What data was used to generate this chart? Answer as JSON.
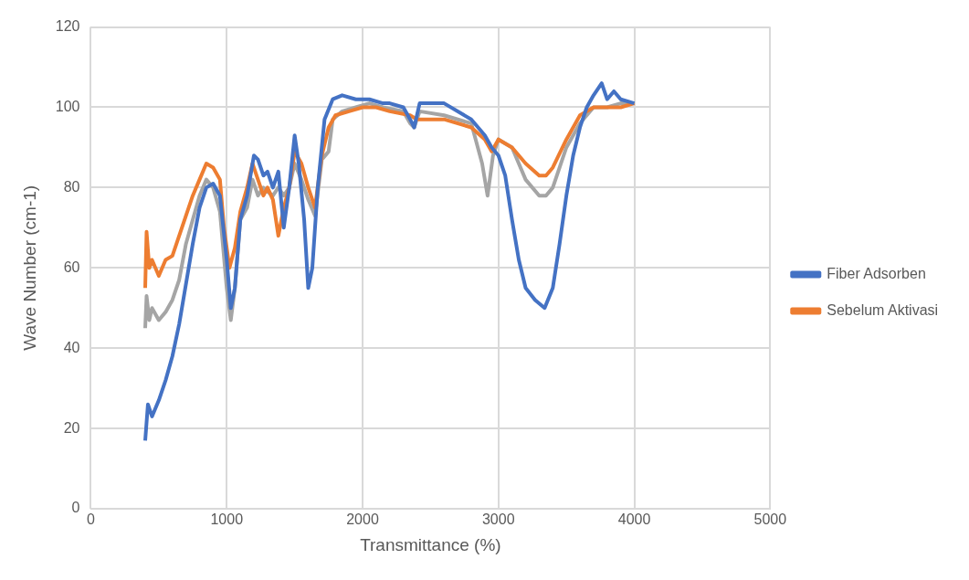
{
  "chart_data": {
    "type": "line",
    "xlabel": "Transmittance (%)",
    "ylabel": "Wave Number (cm-1)",
    "xlim": [
      0,
      5000
    ],
    "xticks": [
      0,
      1000,
      2000,
      3000,
      4000,
      5000
    ],
    "ylim": [
      0,
      120
    ],
    "yticks": [
      0,
      20,
      40,
      60,
      80,
      100,
      120
    ],
    "grid": true,
    "legend": "right",
    "marker": "none",
    "line_style": "solid",
    "series": [
      {
        "name": "Fiber Adsorben",
        "color": "#4472c4",
        "x": [
          400,
          420,
          450,
          500,
          550,
          600,
          650,
          700,
          750,
          800,
          850,
          900,
          950,
          1000,
          1030,
          1060,
          1100,
          1150,
          1200,
          1230,
          1270,
          1300,
          1340,
          1380,
          1420,
          1460,
          1500,
          1530,
          1570,
          1600,
          1630,
          1670,
          1720,
          1780,
          1850,
          1950,
          2050,
          2150,
          2200,
          2300,
          2350,
          2380,
          2420,
          2600,
          2800,
          2900,
          2950,
          3000,
          3050,
          3100,
          3150,
          3200,
          3270,
          3340,
          3400,
          3450,
          3500,
          3550,
          3600,
          3650,
          3700,
          3760,
          3800,
          3850,
          3900,
          4000
        ],
        "values": [
          17,
          26,
          23,
          27,
          32,
          38,
          46,
          56,
          66,
          75,
          80,
          81,
          78,
          62,
          50,
          55,
          72,
          78,
          88,
          87,
          83,
          84,
          80,
          84,
          70,
          80,
          93,
          86,
          72,
          55,
          60,
          80,
          97,
          102,
          103,
          102,
          102,
          101,
          101,
          100,
          97,
          95,
          101,
          101,
          97,
          93,
          90,
          88,
          83,
          72,
          62,
          55,
          52,
          50,
          55,
          66,
          78,
          88,
          95,
          100,
          103,
          106,
          102,
          104,
          102,
          101
        ]
      },
      {
        "name": "Sebelum Aktivasi",
        "color": "#ed7d31",
        "x": [
          400,
          410,
          430,
          450,
          500,
          550,
          600,
          650,
          700,
          750,
          800,
          850,
          900,
          950,
          980,
          1020,
          1060,
          1100,
          1150,
          1190,
          1230,
          1270,
          1300,
          1340,
          1380,
          1420,
          1460,
          1500,
          1550,
          1600,
          1650,
          1700,
          1750,
          1800,
          1900,
          2000,
          2100,
          2200,
          2350,
          2400,
          2600,
          2800,
          2900,
          2950,
          3000,
          3100,
          3200,
          3300,
          3350,
          3400,
          3500,
          3600,
          3700,
          3800,
          3900,
          4000
        ],
        "values": [
          55,
          69,
          60,
          62,
          58,
          62,
          63,
          68,
          73,
          78,
          82,
          86,
          85,
          82,
          70,
          60,
          65,
          74,
          80,
          86,
          82,
          78,
          80,
          77,
          68,
          75,
          80,
          89,
          86,
          80,
          75,
          88,
          95,
          98,
          99,
          100,
          100,
          99,
          98,
          97,
          97,
          95,
          92,
          89,
          92,
          90,
          86,
          83,
          83,
          85,
          92,
          98,
          100,
          100,
          100,
          101
        ]
      },
      {
        "color": "#a5a5a5",
        "x": [
          400,
          410,
          430,
          450,
          500,
          550,
          600,
          650,
          700,
          750,
          800,
          850,
          900,
          950,
          1000,
          1030,
          1060,
          1100,
          1150,
          1190,
          1230,
          1270,
          1300,
          1340,
          1380,
          1420,
          1460,
          1500,
          1550,
          1600,
          1650,
          1700,
          1750,
          1780,
          1850,
          1950,
          2050,
          2150,
          2300,
          2350,
          2380,
          2420,
          2600,
          2800,
          2880,
          2920,
          2960,
          3000,
          3100,
          3200,
          3300,
          3350,
          3400,
          3500,
          3600,
          3700,
          3800,
          3900,
          4000
        ],
        "values": [
          45,
          53,
          47,
          50,
          47,
          49,
          52,
          57,
          66,
          72,
          78,
          82,
          80,
          74,
          55,
          47,
          55,
          72,
          75,
          82,
          78,
          80,
          79,
          78,
          80,
          78,
          80,
          86,
          82,
          77,
          73,
          87,
          89,
          97,
          99,
          100,
          101,
          100,
          99,
          96,
          95,
          99,
          98,
          96,
          86,
          78,
          88,
          92,
          90,
          82,
          78,
          78,
          80,
          90,
          96,
          100,
          100,
          101,
          101
        ]
      }
    ]
  }
}
